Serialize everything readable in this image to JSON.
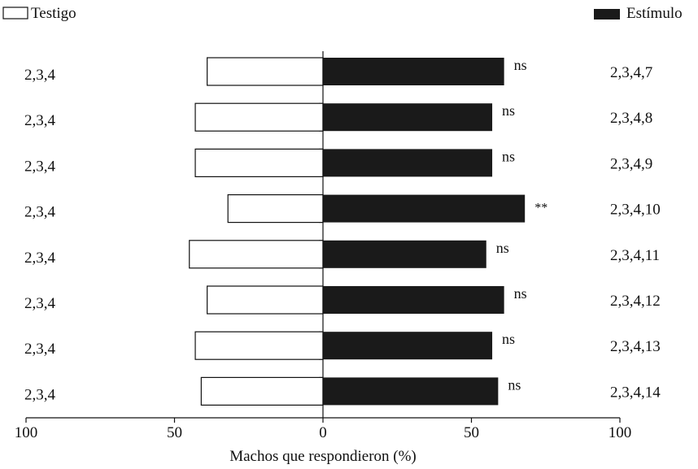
{
  "chart_data": {
    "type": "bar",
    "orientation": "horizontal-diverging",
    "legend": {
      "left": {
        "label": "Testigo",
        "fill": "#ffffff"
      },
      "right": {
        "label": "Estímulo",
        "fill": "#1a1a1a"
      }
    },
    "legend_placement": "top",
    "xlabel": "Machos que respondieron (%)",
    "xlim": [
      -100,
      100
    ],
    "x_ticks": [
      {
        "value": -100,
        "label": "100"
      },
      {
        "value": -50,
        "label": "50"
      },
      {
        "value": 0,
        "label": "0"
      },
      {
        "value": 50,
        "label": "50"
      },
      {
        "value": 100,
        "label": "100"
      }
    ],
    "grid": false,
    "categories": [
      {
        "left_label": "2,3,4",
        "right_label": "2,3,4,7",
        "testigo": 39,
        "estimulo": 61,
        "significance": "ns"
      },
      {
        "left_label": "2,3,4",
        "right_label": "2,3,4,8",
        "testigo": 43,
        "estimulo": 57,
        "significance": "ns"
      },
      {
        "left_label": "2,3,4",
        "right_label": "2,3,4,9",
        "testigo": 43,
        "estimulo": 57,
        "significance": "ns"
      },
      {
        "left_label": "2,3,4",
        "right_label": "2,3,4,10",
        "testigo": 32,
        "estimulo": 68,
        "significance": "**"
      },
      {
        "left_label": "2,3,4",
        "right_label": "2,3,4,11",
        "testigo": 45,
        "estimulo": 55,
        "significance": "ns"
      },
      {
        "left_label": "2,3,4",
        "right_label": "2,3,4,12",
        "testigo": 39,
        "estimulo": 61,
        "significance": "ns"
      },
      {
        "left_label": "2,3,4",
        "right_label": "2,3,4,13",
        "testigo": 43,
        "estimulo": 57,
        "significance": "ns"
      },
      {
        "left_label": "2,3,4",
        "right_label": "2,3,4,14",
        "testigo": 41,
        "estimulo": 59,
        "significance": "ns"
      }
    ]
  }
}
